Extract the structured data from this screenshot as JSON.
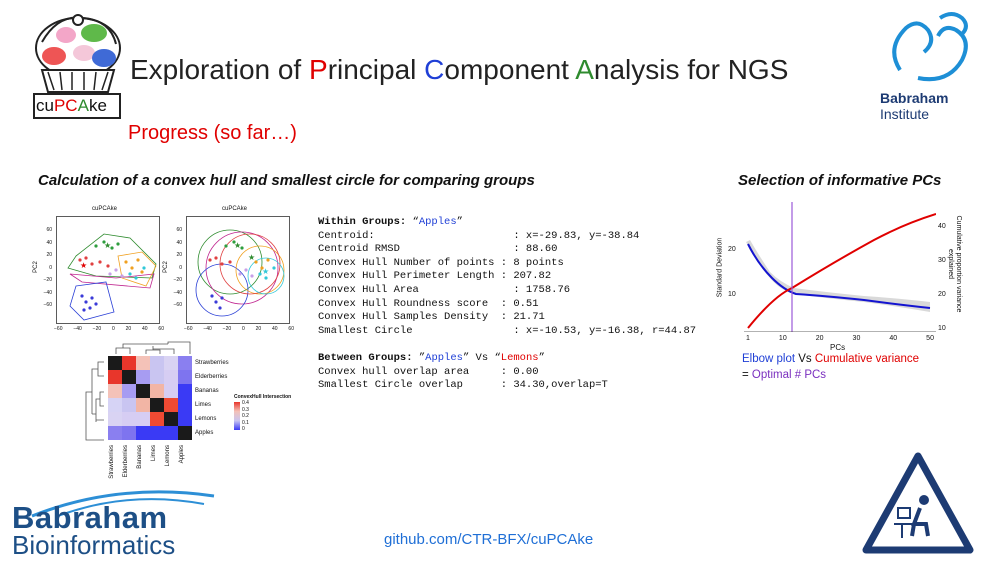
{
  "logo": {
    "text_parts": [
      "cu",
      "PC",
      "A",
      "ke"
    ]
  },
  "title": {
    "parts": [
      "Exploration of ",
      "P",
      "rincipal ",
      "C",
      "omponent ",
      "A",
      "nalysis for NGS"
    ]
  },
  "progress": "Progress (so far…)",
  "sections": {
    "left": "Calculation of a convex hull and smallest circle for comparing groups",
    "right": "Selection of informative PCs"
  },
  "scatter_plots": [
    {
      "title": "cuPCAke",
      "ylabel": "PC2",
      "y_ticks": [
        "60",
        "40",
        "20",
        "0",
        "−20",
        "−40",
        "−60"
      ],
      "x_ticks": [
        "−60",
        "−40",
        "−20",
        "0",
        "20",
        "40",
        "60"
      ]
    },
    {
      "title": "cuPCAke",
      "ylabel": "PC2",
      "y_ticks": [
        "60",
        "40",
        "20",
        "0",
        "−20",
        "−40",
        "−60"
      ],
      "x_ticks": [
        "−60",
        "−40",
        "−20",
        "0",
        "20",
        "40",
        "60"
      ]
    }
  ],
  "heatmap": {
    "rows": [
      "Strawberries",
      "Elderberries",
      "Bananas",
      "Limes",
      "Lemons",
      "Apples"
    ],
    "cols": [
      "Strawberries",
      "Elderberries",
      "Bananas",
      "Limes",
      "Lemons",
      "Apples"
    ],
    "legend_title": "ConvexHull Intersection",
    "legend_ticks": [
      "0.4",
      "0.3",
      "0.2",
      "0.1",
      "0"
    ],
    "colors": [
      [
        "#1a1a1a",
        "#e8362b",
        "#f4c2b8",
        "#c9c5f1",
        "#d9d3f3",
        "#8a7ff0"
      ],
      [
        "#e8362b",
        "#1a1a1a",
        "#a79cf2",
        "#c9c5f1",
        "#d6cdf3",
        "#7e74ef"
      ],
      [
        "#f4c2b8",
        "#a79cf2",
        "#1a1a1a",
        "#f2b5a5",
        "#d6cdf3",
        "#3a3af5"
      ],
      [
        "#d6d3f5",
        "#c9c5f1",
        "#f2b5a5",
        "#1a1a1a",
        "#ef4a33",
        "#3a3af5"
      ],
      [
        "#d9d3f3",
        "#d6cdf3",
        "#d6cdf3",
        "#ef4a33",
        "#1a1a1a",
        "#3a3af5"
      ],
      [
        "#8a7ff0",
        "#7e74ef",
        "#3a3af5",
        "#3a3af5",
        "#3a3af5",
        "#1a1a1a"
      ]
    ]
  },
  "within": {
    "label": "Within Groups: ",
    "quote_open": "“",
    "group": "Apples",
    "quote_close": "”",
    "lines": [
      "Centroid:                      : x=-29.83, y=-38.84",
      "Centroid RMSD                  : 88.60",
      "Convex Hull Number of points : 8 points",
      "Convex Hull Perimeter Length : 207.82",
      "Convex Hull Area               : 1758.76",
      "Convex Hull Roundness score  : 0.51",
      "Convex Hull Samples Density  : 21.71",
      "Smallest Circle                : x=-10.53, y=-16.38, r=44.87"
    ]
  },
  "between": {
    "label": "Between Groups: ",
    "open": "”",
    "group1": "Apples",
    "mid": "” Vs “",
    "group2": "Lemons",
    "close": "”",
    "lines": [
      "Convex hull overlap area     : 0.00",
      "Smallest Circle overlap      : 34.30,overlap=T"
    ]
  },
  "elbow": {
    "ylabel_left": "Standard Deviation",
    "ylabel_right": "Cumulative proportion variance explained",
    "xlabel": "PCs",
    "x_ticks": [
      "1",
      "10",
      "20",
      "30",
      "40",
      "50"
    ],
    "y_ticks_left": [
      "20",
      "10"
    ],
    "y_ticks_right": [
      "40",
      "30",
      "20",
      "10"
    ],
    "legend": {
      "elbow": "Elbow plot",
      "vs": " Vs ",
      "cum": "Cumulative variance",
      "eq": "= ",
      "optimal": "Optimal # PCs"
    },
    "optimal_pc": 12
  },
  "babraham_institute": {
    "line1": "Babraham",
    "line2": "Institute"
  },
  "babraham_bioinformatics": {
    "line1": "Babraham",
    "line2": "Bioinformatics"
  },
  "url": "github.com/CTR-BFX/cuPCAke"
}
